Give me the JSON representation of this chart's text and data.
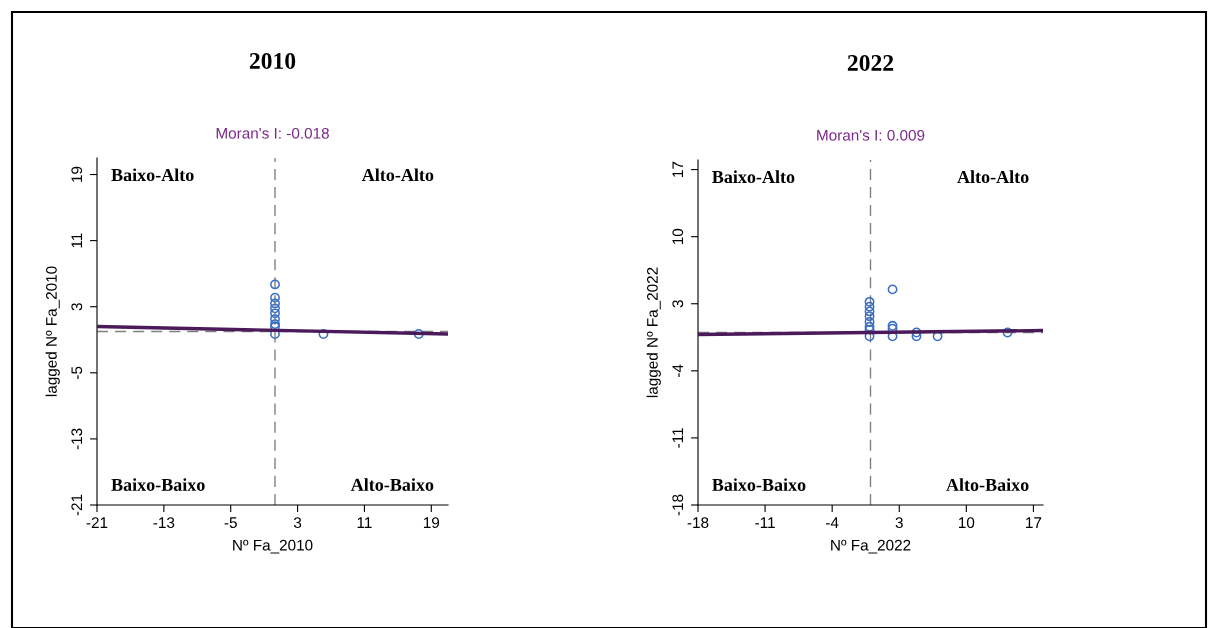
{
  "chart_data": [
    {
      "type": "scatter",
      "title": "2010",
      "subtitle": "Moran's I: -0.018",
      "xlabel": "Nº Fa_2010",
      "ylabel": "lagged Nº Fa_2010",
      "grid": false,
      "legend": false,
      "xlim": [
        -21,
        21
      ],
      "ylim": [
        -21,
        21
      ],
      "xticks": [
        -21,
        -13,
        -5,
        3,
        11,
        19
      ],
      "yticks": [
        -21,
        -13,
        -5,
        3,
        11,
        19
      ],
      "annotations": [
        "Baixo-Alto",
        "Alto-Alto",
        "Baixo-Baixo",
        "Alto-Baixo"
      ],
      "ref_lines": [
        {
          "axis": "x",
          "value": 0.3,
          "color": "#808080",
          "line_style": "dashed"
        },
        {
          "axis": "y",
          "value": 0,
          "color": "#808080",
          "line_style": "dashed"
        }
      ],
      "series": [
        {
          "marker": "circle",
          "color": "#3a6fc4",
          "x": [
            0.3,
            0.3,
            0.3,
            0.3,
            0.3,
            0.3,
            0.3,
            0.3,
            0.3,
            6.1,
            17.5
          ],
          "values": [
            5.7,
            4.1,
            3.4,
            2.8,
            2.2,
            1.5,
            0.9,
            0.6,
            -0.3,
            -0.3,
            -0.3
          ]
        },
        {
          "type": "line",
          "color": "#4b1a5a",
          "x": [
            -21,
            21
          ],
          "values": [
            0.6,
            -0.3
          ]
        }
      ]
    },
    {
      "type": "scatter",
      "title": "2022",
      "subtitle": "Moran's I: 0.009",
      "xlabel": "Nº Fa_2022",
      "ylabel": "lagged Nº Fa_2022",
      "grid": false,
      "legend": false,
      "xlim": [
        -18,
        18
      ],
      "ylim": [
        -18,
        18
      ],
      "xticks": [
        -18,
        -11,
        -4,
        3,
        10,
        17
      ],
      "yticks": [
        -18,
        -11,
        -4,
        3,
        10,
        17
      ],
      "annotations": [
        "Baixo-Alto",
        "Alto-Alto",
        "Baixo-Baixo",
        "Alto-Baixo"
      ],
      "ref_lines": [
        {
          "axis": "x",
          "value": 0,
          "color": "#808080",
          "line_style": "dashed"
        },
        {
          "axis": "y",
          "value": 0,
          "color": "#808080",
          "line_style": "dashed"
        }
      ],
      "series": [
        {
          "marker": "circle",
          "color": "#3a6fc4",
          "x": [
            -0.1,
            -0.1,
            -0.1,
            -0.1,
            -0.1,
            -0.1,
            -0.1,
            -0.1,
            2.3,
            2.3,
            2.3,
            2.3,
            4.8,
            4.8,
            7.0,
            14.3
          ],
          "values": [
            3.2,
            2.7,
            2.2,
            1.7,
            1.1,
            0.6,
            0.3,
            -0.4,
            4.5,
            0.7,
            0.4,
            -0.4,
            0,
            -0.4,
            -0.4,
            0
          ]
        },
        {
          "type": "line",
          "color": "#4b1a5a",
          "x": [
            -18,
            18
          ],
          "values": [
            -0.2,
            0.2
          ]
        }
      ]
    }
  ]
}
